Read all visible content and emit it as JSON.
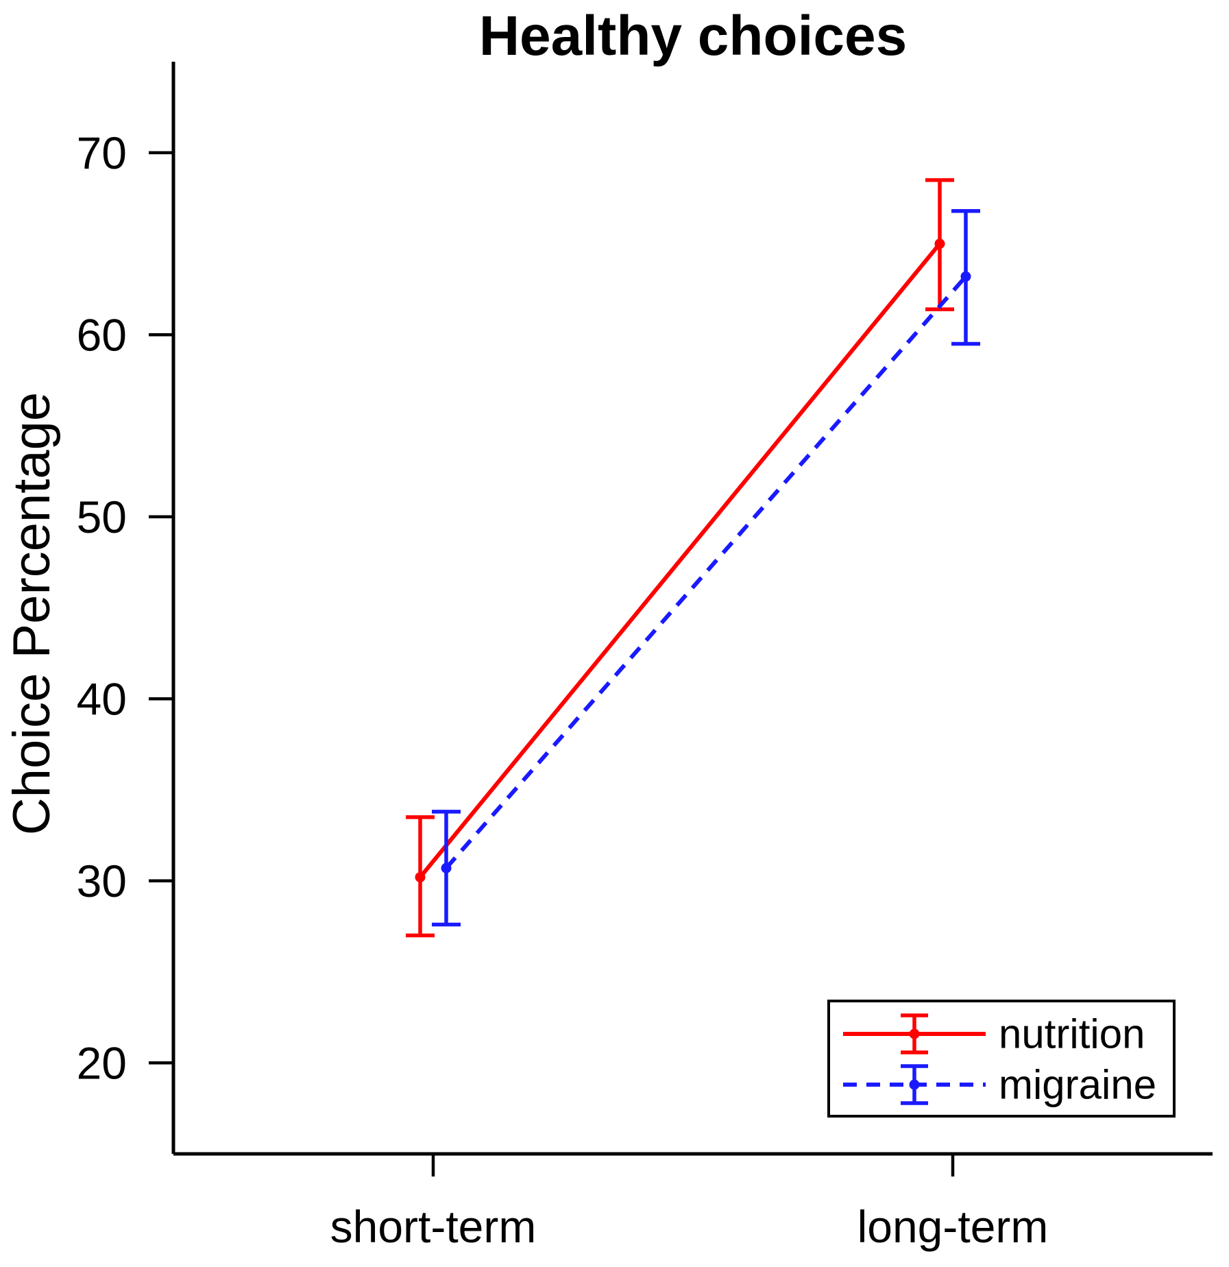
{
  "chart_data": {
    "type": "line",
    "title": "Healthy choices",
    "xlabel": "",
    "ylabel": "Choice Percentage",
    "categories": [
      "short-term",
      "long-term"
    ],
    "series": [
      {
        "name": "nutrition",
        "color": "#FF0000",
        "line_style": "solid",
        "values": [
          30.2,
          65.0
        ],
        "ci_low": [
          27.0,
          61.4
        ],
        "ci_high": [
          33.5,
          68.5
        ]
      },
      {
        "name": "migraine",
        "color": "#1A1AFF",
        "line_style": "dashed",
        "values": [
          30.7,
          63.2
        ],
        "ci_low": [
          27.6,
          59.5
        ],
        "ci_high": [
          33.8,
          66.8
        ]
      }
    ],
    "ylim": [
      15,
      75
    ],
    "yticks": [
      20,
      30,
      40,
      50,
      60,
      70
    ],
    "grid": false,
    "error_bars": true,
    "marker": "circle",
    "legend_position": "bottom-right",
    "axis_color": "#000000",
    "background_color": "#FFFFFF"
  }
}
